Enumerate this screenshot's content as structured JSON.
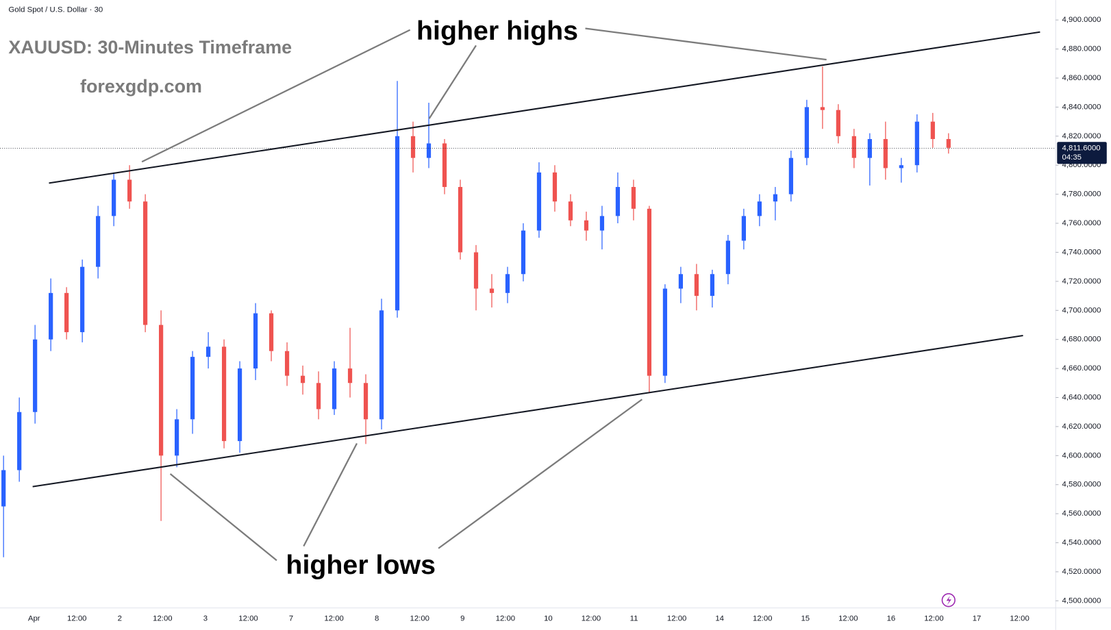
{
  "chart_data": {
    "type": "candlestick",
    "header": "Gold Spot / U.S. Dollar · 30",
    "title": "XAUUSD: 30-Minutes Timeframe",
    "subtitle": "forexgdp.com",
    "annotations": [
      "higher highs",
      "higher lows"
    ],
    "up_color": "#2962ff",
    "down_color": "#ef5350",
    "grid": false,
    "open": [
      4565,
      4590,
      4630,
      4680,
      4712,
      4685,
      4730,
      4765,
      4790,
      4775,
      4690,
      4600,
      4625,
      4668,
      4675,
      4610,
      4660,
      4698,
      4672,
      4655,
      4650,
      4632,
      4660,
      4650,
      4625,
      4700,
      4820,
      4805,
      4815,
      4785,
      4740,
      4715,
      4712,
      4725,
      4755,
      4795,
      4775,
      4762,
      4755,
      4765,
      4785,
      4770,
      4655,
      4715,
      4725,
      4710,
      4725,
      4748,
      4765,
      4775,
      4780,
      4805,
      4840,
      4838,
      4820,
      4805,
      4818,
      4798,
      4800,
      4830,
      4818
    ],
    "high": [
      4600,
      4640,
      4690,
      4722,
      4716,
      4735,
      4772,
      4795,
      4800,
      4780,
      4700,
      4632,
      4672,
      4685,
      4680,
      4665,
      4705,
      4700,
      4678,
      4662,
      4658,
      4665,
      4688,
      4656,
      4708,
      4858,
      4830,
      4843,
      4818,
      4790,
      4745,
      4725,
      4730,
      4760,
      4802,
      4800,
      4780,
      4768,
      4772,
      4795,
      4790,
      4772,
      4718,
      4730,
      4732,
      4728,
      4752,
      4770,
      4780,
      4785,
      4810,
      4845,
      4868,
      4842,
      4825,
      4822,
      4830,
      4805,
      4835,
      4836,
      4822
    ],
    "low": [
      4530,
      4582,
      4622,
      4672,
      4680,
      4678,
      4722,
      4758,
      4770,
      4685,
      4555,
      4592,
      4615,
      4660,
      4605,
      4602,
      4652,
      4665,
      4648,
      4642,
      4625,
      4628,
      4640,
      4608,
      4618,
      4695,
      4795,
      4798,
      4780,
      4735,
      4700,
      4702,
      4705,
      4720,
      4750,
      4768,
      4758,
      4748,
      4742,
      4760,
      4762,
      4643,
      4650,
      4705,
      4700,
      4702,
      4718,
      4742,
      4758,
      4762,
      4775,
      4800,
      4825,
      4815,
      4798,
      4786,
      4790,
      4788,
      4795,
      4812,
      4808
    ],
    "close": [
      4590,
      4630,
      4680,
      4712,
      4685,
      4730,
      4765,
      4790,
      4775,
      4690,
      4600,
      4625,
      4668,
      4675,
      4610,
      4660,
      4698,
      4672,
      4655,
      4650,
      4632,
      4660,
      4650,
      4625,
      4700,
      4820,
      4805,
      4815,
      4785,
      4740,
      4715,
      4712,
      4725,
      4755,
      4795,
      4775,
      4762,
      4755,
      4765,
      4785,
      4770,
      4655,
      4715,
      4725,
      4710,
      4725,
      4748,
      4765,
      4775,
      4780,
      4805,
      4840,
      4838,
      4820,
      4805,
      4818,
      4798,
      4800,
      4830,
      4818,
      4812
    ],
    "ylim": [
      4495.1,
      4913.7
    ],
    "yticks": [
      {
        "value": 4500,
        "label": "4,500.0000"
      },
      {
        "value": 4520,
        "label": "4,520.0000"
      },
      {
        "value": 4540,
        "label": "4,540.0000"
      },
      {
        "value": 4560,
        "label": "4,560.0000"
      },
      {
        "value": 4580,
        "label": "4,580.0000"
      },
      {
        "value": 4600,
        "label": "4,600.0000"
      },
      {
        "value": 4620,
        "label": "4,620.0000"
      },
      {
        "value": 4640,
        "label": "4,640.0000"
      },
      {
        "value": 4660,
        "label": "4,660.0000"
      },
      {
        "value": 4680,
        "label": "4,680.0000"
      },
      {
        "value": 4700,
        "label": "4,700.0000"
      },
      {
        "value": 4720,
        "label": "4,720.0000"
      },
      {
        "value": 4740,
        "label": "4,740.0000"
      },
      {
        "value": 4760,
        "label": "4,760.0000"
      },
      {
        "value": 4780,
        "label": "4,780.0000"
      },
      {
        "value": 4800,
        "label": "4,800.0000"
      },
      {
        "value": 4820,
        "label": "4,820.0000"
      },
      {
        "value": 4840,
        "label": "4,840.0000"
      },
      {
        "value": 4860,
        "label": "4,860.0000"
      },
      {
        "value": 4880,
        "label": "4,880.0000"
      },
      {
        "value": 4900,
        "label": "4,900.0000"
      }
    ],
    "xtick_labels": [
      "Apr",
      "12:00",
      "2",
      "12:00",
      "3",
      "12:00",
      "7",
      "12:00",
      "8",
      "12:00",
      "9",
      "12:00",
      "10",
      "12:00",
      "11",
      "12:00",
      "14",
      "12:00",
      "15",
      "12:00",
      "16",
      "12:00",
      "17",
      "12:00"
    ],
    "last_price": {
      "value": 4811.6,
      "label": "4,811.6000"
    },
    "countdown": "04:35"
  }
}
